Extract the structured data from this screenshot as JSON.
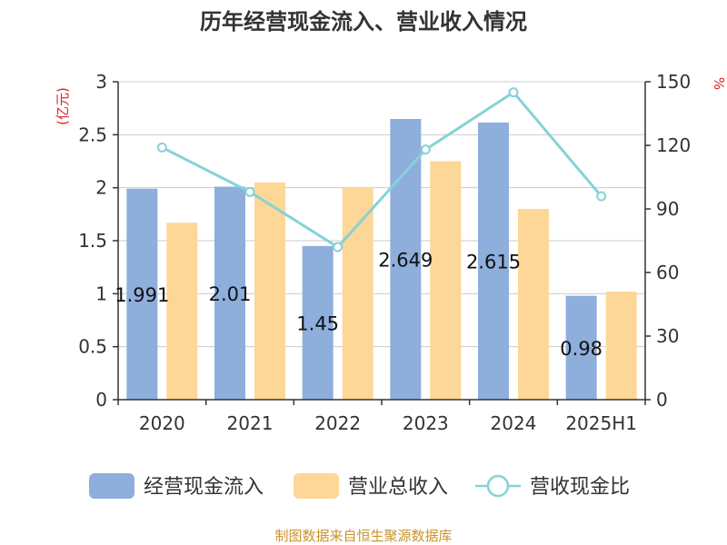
{
  "title": "历年经营现金流入、营业收入情况",
  "source": "制图数据来自恒生聚源数据库",
  "colors": {
    "cash_inflow": "#8eaedc",
    "revenue": "#fdd797",
    "ratio_line": "#86d2d6",
    "unit_left": "#e02020",
    "unit_right": "#e02020"
  },
  "chart_data": {
    "type": "bar",
    "categories": [
      "2020",
      "2021",
      "2022",
      "2023",
      "2024",
      "2025H1"
    ],
    "y_left": {
      "unit": "(亿元)",
      "range": [
        0,
        3
      ],
      "ticks": [
        "0",
        "0.5",
        "1",
        "1.5",
        "2",
        "2.5",
        "3"
      ]
    },
    "y_right": {
      "unit": "%",
      "range": [
        0,
        150
      ],
      "ticks": [
        "0",
        "30",
        "60",
        "90",
        "120",
        "150"
      ]
    },
    "grid": true,
    "legend_position": "bottom",
    "series": [
      {
        "name": "经营现金流入",
        "type": "bar",
        "axis": "left",
        "values": [
          1.991,
          2.01,
          1.45,
          2.649,
          2.615,
          0.98
        ],
        "labels": [
          "1.991",
          "2.01",
          "1.45",
          "2.649",
          "2.615",
          "0.98"
        ]
      },
      {
        "name": "营业总收入",
        "type": "bar",
        "axis": "left",
        "values": [
          1.67,
          2.05,
          2.0,
          2.25,
          1.8,
          1.02
        ]
      },
      {
        "name": "营收现金比",
        "type": "line",
        "axis": "right",
        "values": [
          119,
          98,
          72,
          118,
          145,
          96
        ]
      }
    ]
  }
}
